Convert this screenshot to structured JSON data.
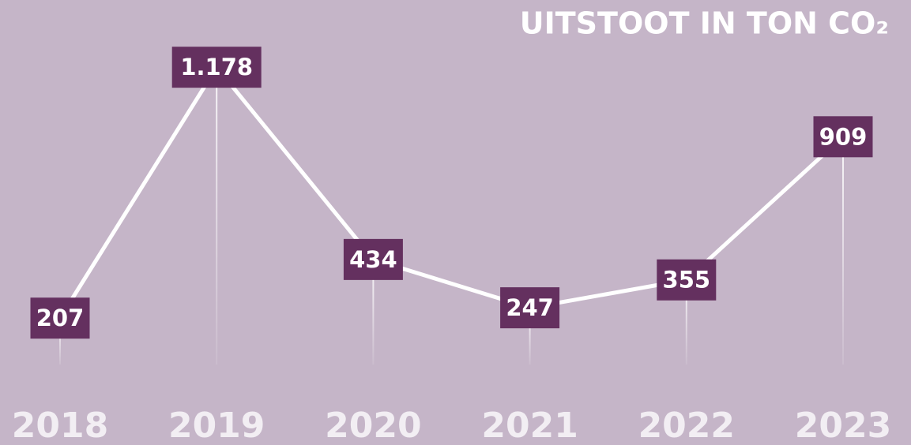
{
  "chart_data": {
    "type": "line",
    "title": "UITSTOOT IN TON CO₂",
    "categories": [
      "2018",
      "2019",
      "2020",
      "2021",
      "2022",
      "2023"
    ],
    "values": [
      207,
      1178,
      434,
      247,
      355,
      909
    ],
    "value_labels": [
      "207",
      "1.178",
      "434",
      "247",
      "355",
      "909"
    ],
    "color": "#ffffff",
    "label_color": "#64305f"
  }
}
